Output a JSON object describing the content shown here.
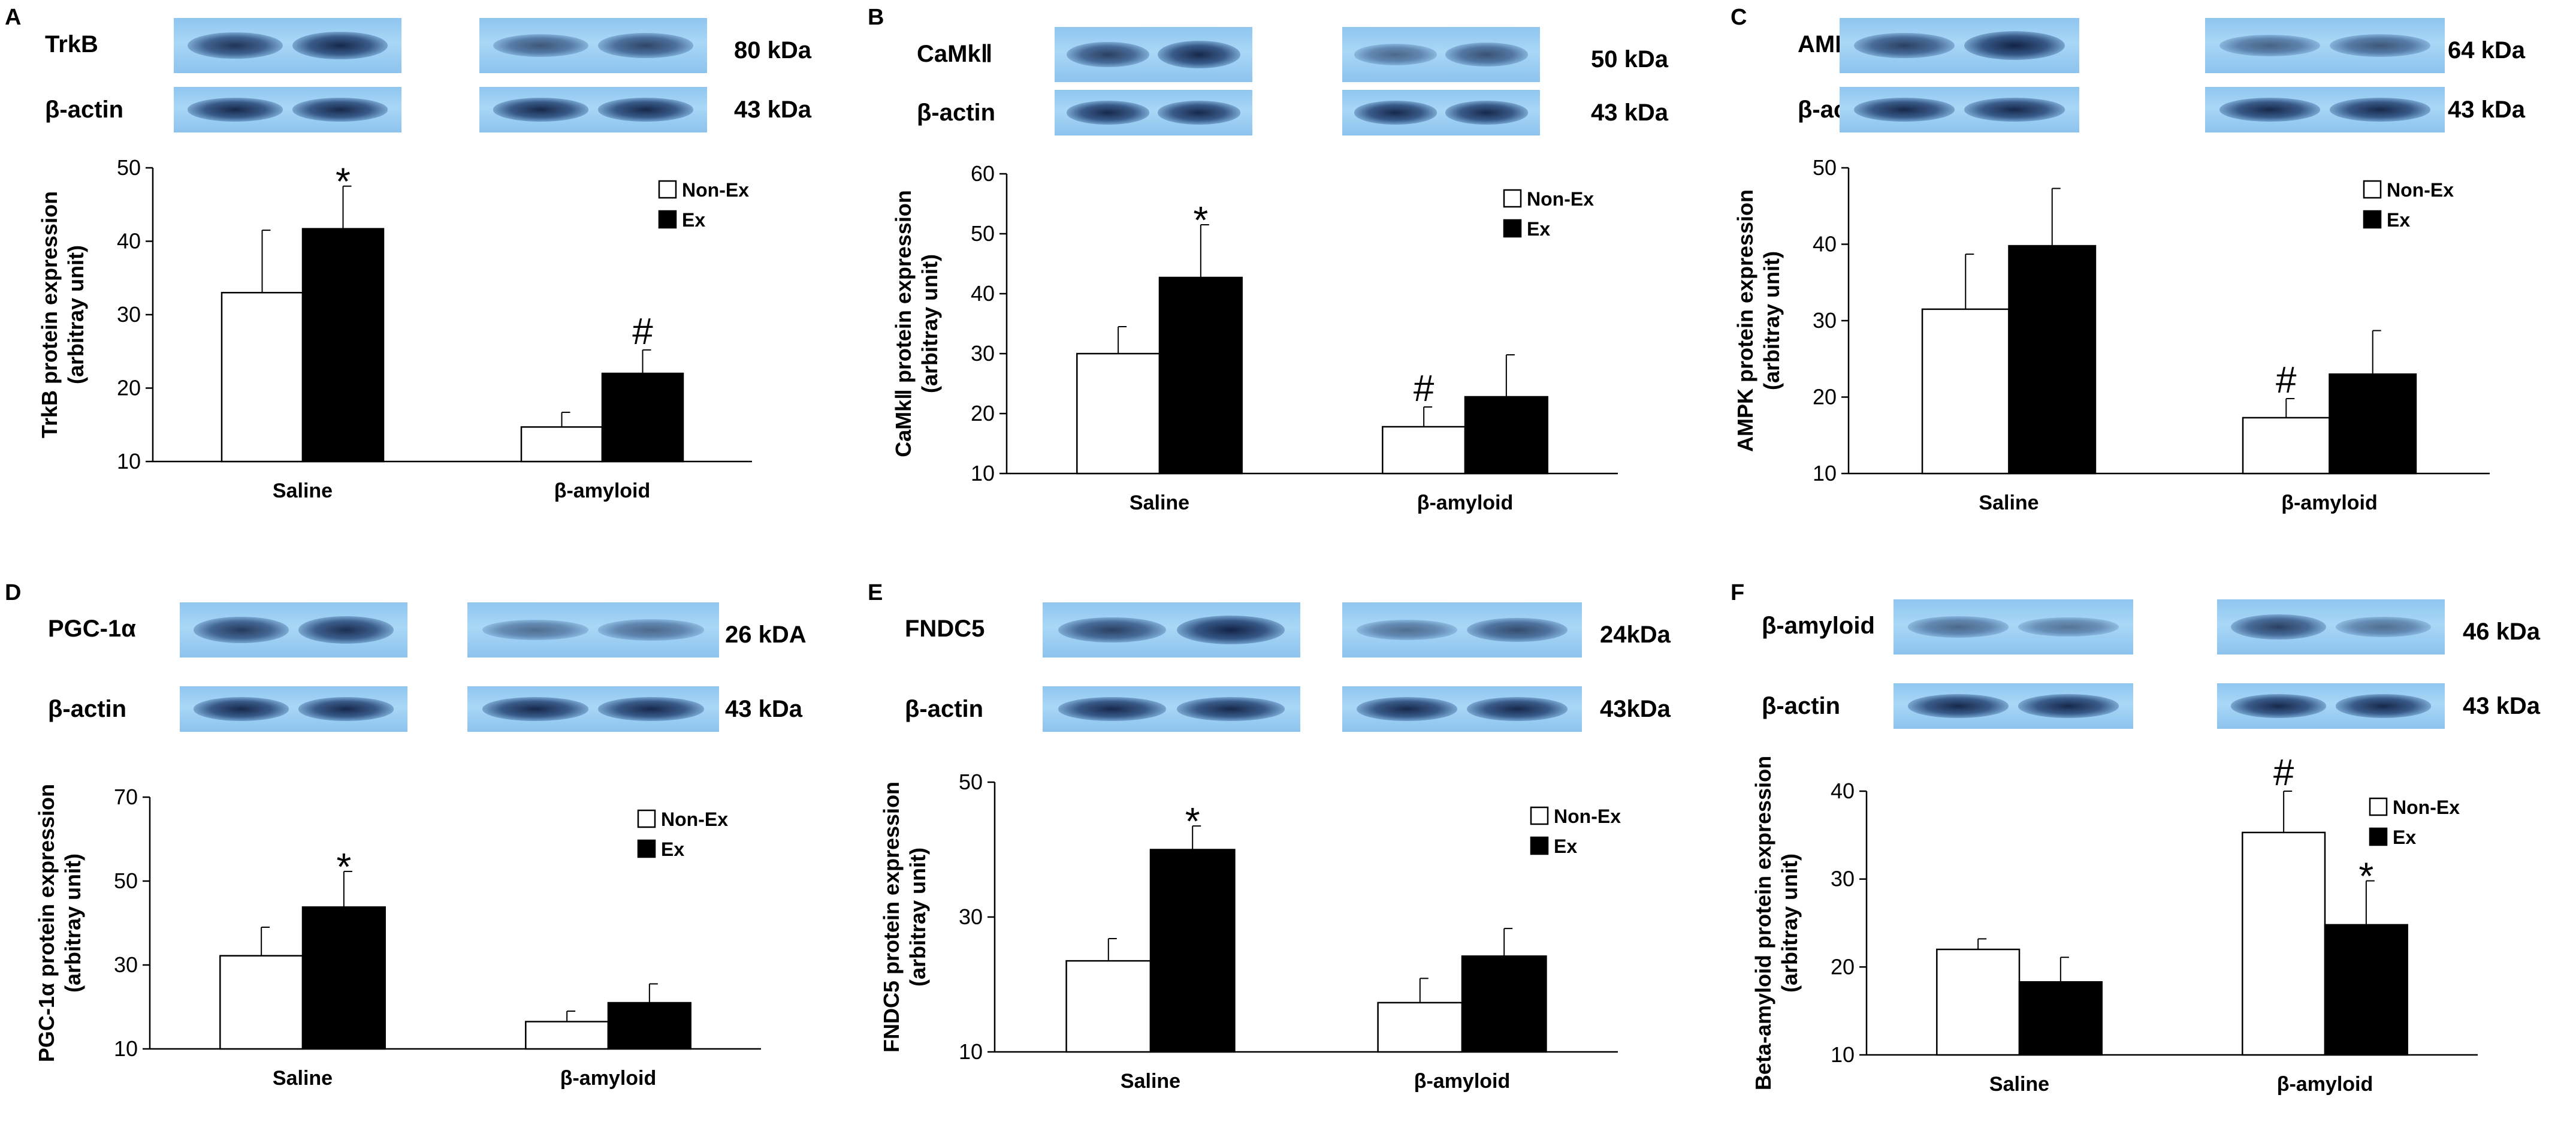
{
  "colors": {
    "non_ex": "#ffffff",
    "ex": "#000000",
    "blot": "#9fd0f4",
    "band": "#1a2f5a"
  },
  "panels": [
    {
      "letter": "A",
      "protein_label": "TrkB",
      "protein_size": "80 kDa",
      "control_label": "β-actin",
      "control_size": "43 kDa",
      "band_intensity": {
        "protein": [
          0.85,
          0.95,
          0.55,
          0.7
        ],
        "control": [
          0.95,
          0.95,
          0.95,
          0.95
        ]
      }
    },
    {
      "letter": "B",
      "protein_label": "CaMkⅡ",
      "protein_size": "50 kDa",
      "control_label": "β-actin",
      "control_size": "43 kDa",
      "band_intensity": {
        "protein": [
          0.75,
          0.95,
          0.4,
          0.6
        ],
        "control": [
          0.95,
          0.95,
          0.95,
          0.95
        ]
      }
    },
    {
      "letter": "C",
      "protein_label": "AMPK",
      "protein_size": "64 kDa",
      "control_label": "β-actin",
      "control_size": "43 kDa",
      "band_intensity": {
        "protein": [
          0.75,
          1.0,
          0.45,
          0.55
        ],
        "control": [
          0.95,
          0.95,
          0.95,
          0.95
        ]
      }
    },
    {
      "letter": "D",
      "protein_label": "PGC-1α",
      "protein_size": "26 kDA",
      "control_label": "β-actin",
      "control_size": "43 kDa",
      "band_intensity": {
        "protein": [
          0.8,
          0.9,
          0.35,
          0.4
        ],
        "control": [
          0.95,
          0.95,
          0.95,
          0.95
        ]
      }
    },
    {
      "letter": "E",
      "protein_label": "FNDC5",
      "protein_size": "24kDa",
      "control_label": "β-actin",
      "control_size": "43kDa",
      "band_intensity": {
        "protein": [
          0.75,
          1.0,
          0.35,
          0.65
        ],
        "control": [
          0.95,
          0.95,
          0.95,
          0.95
        ]
      }
    },
    {
      "letter": "F",
      "protein_label": "β-amyloid",
      "protein_size": "46 kDa",
      "control_label": "β-actin",
      "control_size": "43 kDa",
      "band_intensity": {
        "protein": [
          0.4,
          0.3,
          0.75,
          0.35
        ],
        "control": [
          0.95,
          0.95,
          0.95,
          0.95
        ]
      }
    }
  ],
  "chart_data": [
    {
      "type": "bar",
      "panel": "A",
      "categories": [
        "Saline",
        "β-amyloid"
      ],
      "series": [
        {
          "name": "Non-Ex",
          "values": [
            33,
            14.7
          ],
          "errors": [
            8.5,
            2
          ]
        },
        {
          "name": "Ex",
          "values": [
            41.7,
            22
          ],
          "errors": [
            5.8,
            3.2
          ]
        }
      ],
      "ylabel": "TrkB protein expression\n(arbitray unit)",
      "ylim": [
        10,
        50
      ],
      "yticks": [
        10,
        20,
        30,
        40,
        50
      ],
      "annotations": [
        {
          "text": "*",
          "category": 0,
          "series": 1
        },
        {
          "text": "#",
          "category": 1,
          "series": 1
        }
      ],
      "legend": "top-right"
    },
    {
      "type": "bar",
      "panel": "B",
      "categories": [
        "Saline",
        "β-amyloid"
      ],
      "series": [
        {
          "name": "Non-Ex",
          "values": [
            30,
            17.8
          ],
          "errors": [
            4.5,
            3.3
          ]
        },
        {
          "name": "Ex",
          "values": [
            42.7,
            22.8
          ],
          "errors": [
            8.8,
            7
          ]
        }
      ],
      "ylabel": "CaMkⅡ protein expression\n(arbitray unit)",
      "ylim": [
        10,
        60
      ],
      "yticks": [
        10,
        20,
        30,
        40,
        50,
        60
      ],
      "annotations": [
        {
          "text": "*",
          "category": 0,
          "series": 1
        },
        {
          "text": "#",
          "category": 1,
          "series": 0
        }
      ],
      "legend": "top-right"
    },
    {
      "type": "bar",
      "panel": "C",
      "categories": [
        "Saline",
        "β-amyloid"
      ],
      "series": [
        {
          "name": "Non-Ex",
          "values": [
            31.5,
            17.3
          ],
          "errors": [
            7.2,
            2.5
          ]
        },
        {
          "name": "Ex",
          "values": [
            39.8,
            23
          ],
          "errors": [
            7.5,
            5.7
          ]
        }
      ],
      "ylabel": "AMPK protein expression\n(arbitray unit)",
      "ylim": [
        10,
        50
      ],
      "yticks": [
        10,
        20,
        30,
        40,
        50
      ],
      "annotations": [
        {
          "text": "#",
          "category": 1,
          "series": 0
        }
      ],
      "legend": "top-right"
    },
    {
      "type": "bar",
      "panel": "D",
      "categories": [
        "Saline",
        "β-amyloid"
      ],
      "series": [
        {
          "name": "Non-Ex",
          "values": [
            32.2,
            16.5
          ],
          "errors": [
            6.8,
            2.5
          ]
        },
        {
          "name": "Ex",
          "values": [
            43.8,
            21
          ],
          "errors": [
            8.5,
            4.5
          ]
        }
      ],
      "ylabel": "PGC-1α protein expression\n(arbitray unit)",
      "ylim": [
        10,
        70
      ],
      "yticks": [
        10,
        30,
        50,
        70
      ],
      "annotations": [
        {
          "text": "*",
          "category": 0,
          "series": 1
        }
      ],
      "legend": "top-right"
    },
    {
      "type": "bar",
      "panel": "E",
      "categories": [
        "Saline",
        "β-amyloid"
      ],
      "series": [
        {
          "name": "Non-Ex",
          "values": [
            23.5,
            17.3
          ],
          "errors": [
            3.3,
            3.6
          ]
        },
        {
          "name": "Ex",
          "values": [
            40,
            24.2
          ],
          "errors": [
            3.5,
            4.1
          ]
        }
      ],
      "ylabel": "FNDC5 protein expression\n(arbitray unit)",
      "ylim": [
        10,
        50
      ],
      "yticks": [
        10,
        30,
        50
      ],
      "annotations": [
        {
          "text": "*",
          "category": 0,
          "series": 1
        }
      ],
      "legend": "top-right"
    },
    {
      "type": "bar",
      "panel": "F",
      "categories": [
        "Saline",
        "β-amyloid"
      ],
      "series": [
        {
          "name": "Non-Ex",
          "values": [
            22,
            35.3
          ],
          "errors": [
            1.2,
            4.7
          ]
        },
        {
          "name": "Ex",
          "values": [
            18.3,
            24.8
          ],
          "errors": [
            2.8,
            5
          ]
        }
      ],
      "ylabel": "Beta-amyloid protein expression\n(arbitray unit)",
      "ylim": [
        10,
        40
      ],
      "yticks": [
        10,
        20,
        30,
        40
      ],
      "annotations": [
        {
          "text": "#",
          "category": 1,
          "series": 0
        },
        {
          "text": "*",
          "category": 1,
          "series": 1
        }
      ],
      "legend": "top-right"
    }
  ]
}
